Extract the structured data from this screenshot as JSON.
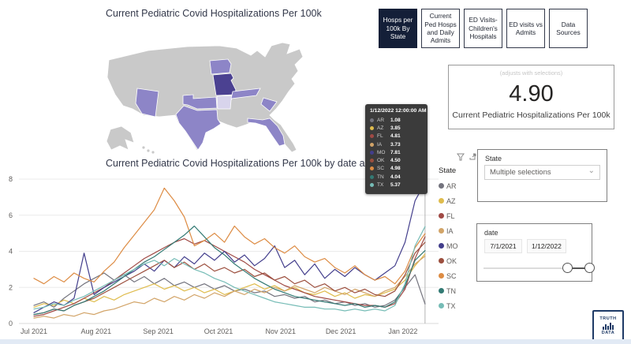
{
  "titles": {
    "map_chart": "Current Pediatric Covid Hospitalizations Per 100k",
    "line_chart": "Current Pediatric Covid Hospitalizations Per 100k by date and State"
  },
  "nav": {
    "tabs": [
      {
        "label": "Hosps per 100k By State",
        "active": true
      },
      {
        "label": "Current Ped Hosps and Daily Admits",
        "active": false
      },
      {
        "label": "ED Visits- Children's Hospitals",
        "active": false
      },
      {
        "label": "ED visits vs Admits",
        "active": false
      },
      {
        "label": "Data Sources",
        "active": false
      }
    ]
  },
  "kpi": {
    "note": "(adjusts with selections)",
    "value": "4.90",
    "label": "Current Pediatric Hospitalizations Per 100k"
  },
  "state_slicer": {
    "label": "State",
    "value": "Multiple selections"
  },
  "date_slicer": {
    "label": "date",
    "start": "7/1/2021",
    "end": "1/12/2022"
  },
  "legend": {
    "title": "State"
  },
  "tooltip": {
    "title": "1/12/2022 12:00:00 AM",
    "rows": [
      {
        "state": "AR",
        "value": "1.08",
        "color": "#74747e"
      },
      {
        "state": "AZ",
        "value": "3.85",
        "color": "#dfbc4d"
      },
      {
        "state": "FL",
        "value": "4.81",
        "color": "#a04a45"
      },
      {
        "state": "IA",
        "value": "3.73",
        "color": "#d2a468"
      },
      {
        "state": "MO",
        "value": "7.81",
        "color": "#433e8c"
      },
      {
        "state": "OK",
        "value": "4.50",
        "color": "#9c4f3e"
      },
      {
        "state": "SC",
        "value": "4.98",
        "color": "#dd8c44"
      },
      {
        "state": "TN",
        "value": "4.04",
        "color": "#337a74"
      },
      {
        "state": "TX",
        "value": "5.37",
        "color": "#76bcb6"
      }
    ]
  },
  "logo": {
    "line1": "TRUTH",
    "line2": "IN",
    "line3": "DATA"
  },
  "colors": {
    "active_tab_bg": "#141f38",
    "tooltip_bg": "#3b3b3b",
    "hover_line": "#b3b3b3"
  },
  "chart_data": [
    {
      "type": "line",
      "title": "Current Pediatric Covid Hospitalizations Per 100k by date and State",
      "legend_title": "State",
      "x_tick_labels": [
        "Jul 2021",
        "Aug 2021",
        "Sep 2021",
        "Oct 2021",
        "Nov 2021",
        "Dec 2021",
        "Jan 2022"
      ],
      "x_tick_days": [
        0,
        31,
        62,
        92,
        123,
        153,
        184
      ],
      "x_day_step": 5,
      "x_max_day": 195,
      "ylim": [
        0,
        8
      ],
      "y_ticks": [
        0,
        2,
        4,
        6,
        8
      ],
      "hover_day": 195,
      "series": [
        {
          "name": "AR",
          "color": "#74747e",
          "values": [
            1.0,
            1.2,
            0.9,
            1.4,
            1.8,
            2.2,
            2.5,
            2.8,
            2.4,
            2.7,
            2.3,
            2.6,
            2.2,
            2.5,
            2.1,
            2.3,
            2.0,
            2.2,
            1.9,
            2.1,
            1.8,
            1.9,
            1.7,
            1.8,
            1.5,
            1.6,
            1.4,
            1.5,
            1.2,
            1.3,
            1.1,
            1.2,
            1.0,
            1.1,
            0.9,
            1.0,
            1.3,
            2.0,
            2.7,
            1.08
          ]
        },
        {
          "name": "AZ",
          "color": "#dfbc4d",
          "values": [
            0.9,
            1.1,
            1.0,
            1.3,
            1.1,
            1.4,
            1.2,
            1.5,
            1.3,
            1.6,
            1.8,
            2.0,
            2.2,
            1.9,
            2.1,
            1.8,
            2.0,
            1.7,
            1.9,
            1.6,
            1.8,
            2.0,
            2.2,
            1.9,
            2.1,
            1.8,
            2.0,
            1.7,
            1.6,
            1.8,
            1.5,
            1.7,
            1.4,
            1.6,
            1.5,
            1.7,
            1.9,
            2.4,
            3.2,
            3.85
          ]
        },
        {
          "name": "FL",
          "color": "#a04a45",
          "values": [
            0.4,
            0.5,
            0.7,
            0.9,
            1.1,
            1.4,
            1.7,
            2.0,
            2.4,
            2.8,
            3.2,
            3.6,
            3.9,
            4.2,
            4.5,
            4.7,
            4.4,
            4.6,
            4.3,
            4.0,
            3.7,
            3.4,
            3.0,
            2.7,
            2.4,
            2.1,
            1.9,
            1.7,
            1.5,
            1.4,
            1.3,
            1.2,
            1.1,
            1.0,
            1.0,
            0.9,
            1.1,
            1.9,
            3.6,
            4.81
          ]
        },
        {
          "name": "IA",
          "color": "#d2a468",
          "values": [
            0.3,
            0.4,
            0.3,
            0.5,
            0.4,
            0.6,
            0.5,
            0.7,
            0.8,
            1.0,
            1.2,
            1.1,
            1.4,
            1.2,
            1.5,
            1.3,
            1.6,
            1.4,
            1.7,
            1.5,
            1.8,
            1.6,
            1.9,
            1.7,
            2.0,
            1.8,
            2.1,
            1.9,
            1.7,
            2.0,
            1.8,
            1.6,
            1.9,
            1.7,
            1.5,
            1.8,
            2.0,
            2.6,
            3.3,
            3.73
          ]
        },
        {
          "name": "MO",
          "color": "#433e8c",
          "values": [
            0.6,
            0.9,
            1.2,
            1.0,
            1.4,
            3.9,
            1.6,
            2.0,
            2.3,
            2.6,
            2.9,
            3.3,
            2.9,
            3.5,
            3.1,
            3.7,
            3.3,
            3.9,
            3.5,
            4.0,
            3.4,
            3.8,
            3.2,
            3.6,
            4.3,
            3.1,
            3.5,
            2.7,
            3.3,
            2.5,
            3.0,
            2.6,
            3.1,
            2.7,
            2.4,
            2.8,
            3.2,
            4.5,
            6.8,
            7.81
          ]
        },
        {
          "name": "OK",
          "color": "#9c4f3e",
          "values": [
            0.5,
            0.6,
            0.8,
            0.7,
            1.0,
            1.2,
            1.4,
            1.7,
            2.0,
            2.3,
            2.6,
            2.9,
            3.2,
            3.5,
            3.1,
            3.4,
            3.0,
            3.3,
            2.9,
            3.1,
            2.8,
            3.0,
            2.6,
            2.8,
            2.4,
            2.6,
            2.2,
            2.4,
            2.0,
            2.2,
            1.8,
            2.0,
            1.7,
            1.9,
            1.6,
            1.5,
            1.8,
            2.7,
            3.9,
            4.5
          ]
        },
        {
          "name": "SC",
          "color": "#dd8c44",
          "values": [
            2.5,
            2.2,
            2.6,
            2.3,
            2.8,
            2.5,
            2.3,
            2.9,
            3.4,
            4.2,
            4.9,
            5.6,
            6.3,
            7.5,
            6.8,
            5.9,
            4.3,
            4.6,
            5.0,
            4.5,
            5.4,
            4.8,
            4.4,
            4.7,
            4.2,
            3.9,
            4.3,
            3.7,
            3.4,
            3.6,
            3.1,
            2.8,
            3.2,
            2.7,
            2.4,
            2.6,
            2.2,
            2.9,
            4.2,
            4.98
          ]
        },
        {
          "name": "TN",
          "color": "#337a74",
          "values": [
            0.5,
            0.6,
            0.8,
            0.7,
            1.0,
            1.2,
            1.5,
            1.8,
            2.2,
            2.6,
            3.0,
            3.4,
            3.7,
            4.1,
            4.5,
            4.9,
            5.4,
            4.8,
            4.2,
            3.8,
            3.3,
            2.9,
            2.5,
            2.2,
            1.9,
            1.7,
            1.5,
            1.4,
            1.3,
            1.2,
            1.1,
            1.0,
            1.1,
            0.9,
            1.0,
            0.9,
            1.2,
            2.1,
            3.5,
            4.04
          ]
        },
        {
          "name": "TX",
          "color": "#76bcb6",
          "values": [
            0.8,
            0.9,
            1.1,
            1.0,
            1.3,
            1.5,
            1.8,
            2.1,
            2.4,
            2.7,
            3.0,
            3.3,
            3.5,
            3.2,
            3.6,
            3.3,
            3.0,
            2.8,
            2.5,
            2.3,
            2.0,
            1.8,
            1.6,
            1.4,
            1.2,
            1.1,
            1.0,
            0.9,
            0.9,
            0.8,
            0.8,
            0.7,
            0.8,
            0.7,
            0.8,
            0.7,
            1.0,
            2.2,
            4.3,
            5.37
          ]
        }
      ]
    },
    {
      "type": "choropleth",
      "title": "Current Pediatric Covid Hospitalizations Per 100k",
      "states": {
        "MO": "high",
        "AZ": "medium",
        "TX": "medium",
        "OK": "medium",
        "IA": "medium",
        "TN": "medium",
        "SC": "medium",
        "FL": "medium",
        "AR": "low"
      },
      "colors": {
        "high": "#4b4191",
        "medium": "#8d85c7",
        "low": "#d8d4ec",
        "none": "#c9c9c9"
      }
    }
  ]
}
